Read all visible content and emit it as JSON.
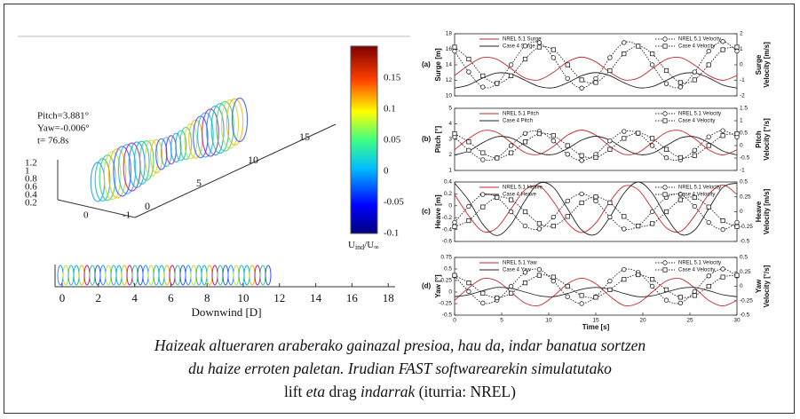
{
  "wake_panel": {
    "annotations": [
      "Pitch=3.881°",
      "Yaw=-0.006°",
      "t= 76.8s"
    ],
    "z_ticks": [
      "1.2",
      "1",
      "0.8",
      "0.6",
      "0.4",
      "0.2"
    ],
    "y_ticks": [
      "0",
      "-1"
    ],
    "x_ticks": [
      "0",
      "5",
      "10",
      "15"
    ],
    "colorbar": {
      "ticks": [
        "0.15",
        "0.1",
        "0.05",
        "0",
        "-0.05",
        "-0.1"
      ],
      "label": [
        {
          "text": "U"
        },
        {
          "text": "ind",
          "sub": true
        },
        {
          "text": "/U"
        },
        {
          "text": "∞",
          "sub": true
        }
      ]
    },
    "strip": {
      "ticks": [
        "0",
        "2",
        "4",
        "6",
        "8",
        "10",
        "12",
        "14",
        "16",
        "18"
      ],
      "xlabel": "Downwind [D]"
    }
  },
  "chart_data": [
    {
      "type": "line",
      "label": "(a)",
      "ylabel": "Surge [m]",
      "y2label": [
        "Surge",
        "Velocity [m/s]"
      ],
      "x": [
        0,
        1.5,
        3,
        4.5,
        6,
        7.5,
        9,
        10.5,
        12,
        13.5,
        15,
        16.5,
        18,
        19.5,
        21,
        22.5,
        24,
        25.5,
        27,
        28.5,
        30
      ],
      "xlim": [
        0,
        30
      ],
      "ylim": [
        10,
        18
      ],
      "yticks": [
        10,
        12,
        14,
        16,
        18
      ],
      "y2lim": [
        -2,
        2
      ],
      "y2ticks": [
        -2,
        -1,
        0,
        1,
        2
      ],
      "series": [
        {
          "name": "NREL 5.1 Surge",
          "color": "#c62828",
          "values": [
            12.62,
            13.96,
            14.93,
            14.71,
            13.5,
            12.29,
            12.07,
            13.04,
            14.38,
            15,
            14.38,
            13.04,
            12.07,
            12.29,
            13.5,
            14.71,
            14.93,
            13.96,
            12.62,
            12,
            12.62
          ]
        },
        {
          "name": "Case 4 Surge",
          "color": "#222222",
          "values": [
            11,
            11.41,
            12.31,
            12.95,
            12.81,
            12,
            11.19,
            11.05,
            11.69,
            12.59,
            13,
            12.59,
            11.69,
            11.05,
            11.19,
            12,
            12.81,
            12.95,
            12.31,
            11.41,
            11
          ]
        },
        {
          "name": "NREL 5.1 Velocity",
          "color": "#222222",
          "axis": "y2",
          "dash": true,
          "marker": "circle",
          "values": [
            0.88,
            -0.46,
            -1.43,
            -1.21,
            0,
            1.21,
            1.43,
            0.46,
            -0.88,
            -1.5,
            -0.88,
            0.46,
            1.43,
            1.21,
            0,
            -1.21,
            -1.43,
            -0.46,
            0.88,
            1.5,
            0.88
          ]
        },
        {
          "name": "Case 4 Velocity",
          "color": "#222222",
          "axis": "y2",
          "dash": true,
          "marker": "square",
          "values": [
            1.14,
            0.37,
            -0.71,
            -1.2,
            -0.71,
            0.37,
            1.14,
            0.97,
            0,
            -0.97,
            -1.14,
            -0.37,
            0.71,
            1.2,
            0.71,
            -0.37,
            -1.14,
            -0.97,
            0,
            0.97,
            1.14
          ]
        }
      ]
    },
    {
      "type": "line",
      "label": "(b)",
      "ylabel": "Pitch [°]",
      "y2label": [
        "Pitch",
        "Velocity [°/s]"
      ],
      "x": [
        0,
        1.5,
        3,
        4.5,
        6,
        7.5,
        9,
        10.5,
        12,
        13.5,
        15,
        16.5,
        18,
        19.5,
        21,
        22.5,
        24,
        25.5,
        27,
        28.5,
        30
      ],
      "xlim": [
        0,
        30
      ],
      "ylim": [
        1,
        5
      ],
      "yticks": [
        1,
        2,
        3,
        4,
        5
      ],
      "y2lim": [
        -1,
        1.5
      ],
      "y2ticks": [
        -1,
        -0.5,
        0,
        0.5,
        1,
        1.5
      ],
      "series": [
        {
          "name": "NREL 5.1 Pitch",
          "color": "#c62828",
          "values": [
            2.33,
            3.05,
            3.56,
            3.45,
            2.8,
            2.15,
            2.04,
            2.55,
            3.27,
            3.6,
            3.27,
            2.55,
            2.04,
            2.15,
            2.8,
            3.45,
            3.56,
            3.05,
            2.33,
            2,
            2.33
          ]
        },
        {
          "name": "Case 4 Pitch",
          "color": "#222222",
          "values": [
            2,
            2.25,
            2.79,
            3.17,
            3.09,
            2.6,
            2.11,
            2.03,
            2.41,
            2.95,
            3.2,
            2.95,
            2.41,
            2.03,
            2.11,
            2.6,
            3.09,
            3.17,
            2.79,
            2.25,
            2
          ]
        },
        {
          "name": "NREL 5.1 Velocity",
          "color": "#222222",
          "axis": "y2",
          "dash": true,
          "marker": "circle",
          "values": [
            0.35,
            -0.19,
            -0.57,
            -0.49,
            0,
            0.49,
            0.57,
            0.19,
            -0.35,
            -0.6,
            -0.35,
            0.19,
            0.57,
            0.49,
            0,
            -0.49,
            -0.57,
            -0.19,
            0.35,
            0.6,
            0.35
          ]
        },
        {
          "name": "Case 4 Velocity",
          "color": "#222222",
          "axis": "y2",
          "dash": true,
          "marker": "square",
          "values": [
            0.48,
            0.15,
            -0.29,
            -0.5,
            -0.29,
            0.15,
            0.48,
            0.4,
            0,
            -0.4,
            -0.48,
            -0.15,
            0.29,
            0.5,
            0.29,
            -0.15,
            -0.48,
            -0.4,
            0,
            0.4,
            0.48
          ]
        }
      ]
    },
    {
      "type": "line",
      "label": "(c)",
      "ylabel": "Heave [m]",
      "y2label": [
        "Heave",
        "Velocity [m/s]"
      ],
      "x": [
        0,
        1.5,
        3,
        4.5,
        6,
        7.5,
        9,
        10.5,
        12,
        13.5,
        15,
        16.5,
        18,
        19.5,
        21,
        22.5,
        24,
        25.5,
        27,
        28.5,
        30
      ],
      "xlim": [
        0,
        30
      ],
      "ylim": [
        -0.6,
        0.4
      ],
      "yticks": [
        -0.6,
        -0.4,
        -0.2,
        0,
        0.2,
        0.4
      ],
      "y2lim": [
        -0.5,
        0.5
      ],
      "y2ticks": [
        -0.5,
        -0.25,
        0,
        0.25,
        0.5
      ],
      "series": [
        {
          "name": "NREL 5.1 Heave",
          "color": "#c62828",
          "values": [
            0.19,
            -0.17,
            -0.43,
            -0.37,
            -0.05,
            0.27,
            0.33,
            0.07,
            -0.29,
            -0.45,
            -0.29,
            0.07,
            0.33,
            0.27,
            -0.05,
            -0.37,
            -0.43,
            -0.17,
            0.19,
            0.35,
            0.19
          ]
        },
        {
          "name": "Case 4 Heave",
          "color": "#222222",
          "values": [
            0.38,
            0.09,
            -0.31,
            -0.5,
            -0.31,
            0.09,
            0.38,
            0.31,
            -0.05,
            -0.41,
            -0.48,
            -0.19,
            0.21,
            0.4,
            0.21,
            -0.19,
            -0.48,
            -0.41,
            -0.05,
            0.31,
            0.38
          ]
        },
        {
          "name": "NREL 5.1 Velocity",
          "color": "#222222",
          "axis": "y2",
          "dash": true,
          "marker": "circle",
          "values": [
            -0.18,
            0.09,
            0.29,
            0.24,
            0,
            -0.24,
            -0.29,
            -0.09,
            0.18,
            0.3,
            0.18,
            -0.09,
            -0.29,
            -0.24,
            0,
            0.24,
            0.29,
            0.09,
            -0.18,
            -0.3,
            -0.18
          ]
        },
        {
          "name": "Case 4 Velocity",
          "color": "#222222",
          "axis": "y2",
          "dash": true,
          "marker": "square",
          "values": [
            -0.25,
            -0.15,
            0.08,
            0.24,
            0.2,
            0,
            -0.2,
            -0.24,
            -0.08,
            0.15,
            0.25,
            0.15,
            -0.08,
            -0.24,
            -0.2,
            0,
            0.2,
            0.24,
            0.08,
            -0.15,
            -0.25
          ]
        }
      ]
    },
    {
      "type": "line",
      "label": "(d)",
      "ylabel": "Yaw [°]",
      "y2label": [
        "Yaw",
        "Velocity [°/s]"
      ],
      "xlabel": "Time [s]",
      "x": [
        0,
        1.5,
        3,
        4.5,
        6,
        7.5,
        9,
        10.5,
        12,
        13.5,
        15,
        16.5,
        18,
        19.5,
        21,
        22.5,
        24,
        25.5,
        27,
        28.5,
        30
      ],
      "xlim": [
        0,
        30
      ],
      "xticks": [
        0,
        5,
        10,
        15,
        20,
        25,
        30
      ],
      "ylim": [
        -0.5,
        0.75
      ],
      "yticks": [
        -0.5,
        -0.25,
        0,
        0.25,
        0.5,
        0.75
      ],
      "y2lim": [
        -0.5,
        0.5
      ],
      "y2ticks": [
        -0.5,
        -0.25,
        0,
        0.25,
        0.5
      ],
      "series": [
        {
          "name": "NREL 5.1 Yaw",
          "color": "#c62828",
          "values": [
            -0.18,
            0.09,
            0.29,
            0.24,
            0,
            -0.24,
            -0.29,
            -0.09,
            0.18,
            0.3,
            0.18,
            -0.09,
            -0.29,
            -0.24,
            0,
            0.24,
            0.29,
            0.09,
            -0.18,
            -0.3,
            -0.18
          ]
        },
        {
          "name": "Case 4 Yaw",
          "color": "#222222",
          "values": [
            -0.1,
            -0.06,
            0.03,
            0.1,
            0.08,
            0,
            -0.08,
            -0.1,
            -0.03,
            0.06,
            0.1,
            0.06,
            -0.03,
            -0.1,
            -0.08,
            0,
            0.08,
            0.1,
            0.03,
            -0.06,
            -0.1
          ]
        },
        {
          "name": "NREL 5.1 Velocity",
          "color": "#222222",
          "axis": "y2",
          "dash": true,
          "marker": "circle",
          "values": [
            0.18,
            -0.09,
            -0.29,
            -0.24,
            0,
            0.24,
            0.29,
            0.09,
            -0.18,
            -0.3,
            -0.18,
            0.09,
            0.29,
            0.24,
            0,
            -0.24,
            -0.29,
            -0.09,
            0.18,
            0.3,
            0.18
          ]
        },
        {
          "name": "Case 4 Velocity",
          "color": "#222222",
          "axis": "y2",
          "dash": true,
          "marker": "square",
          "values": [
            0.19,
            0.06,
            -0.12,
            -0.2,
            -0.12,
            0.06,
            0.19,
            0.16,
            0,
            -0.16,
            -0.19,
            -0.06,
            0.12,
            0.2,
            0.12,
            -0.06,
            -0.19,
            -0.16,
            0,
            0.16,
            0.19
          ]
        }
      ]
    }
  ],
  "caption": {
    "lines": [
      [
        {
          "text": "Haizeak altueraren araberako gainazal presioa, hau da, indar banatua sortzen",
          "italic": true
        }
      ],
      [
        {
          "text": "du haize erroten paletan. Irudian FAST softwarearekin simulatutako",
          "italic": true
        }
      ],
      [
        {
          "text": "lift",
          "italic": false
        },
        {
          "text": " eta ",
          "italic": true
        },
        {
          "text": "drag",
          "italic": false
        },
        {
          "text": " indarrak",
          "italic": true
        },
        {
          "text": " (iturria: NREL)",
          "italic": false
        }
      ]
    ]
  }
}
